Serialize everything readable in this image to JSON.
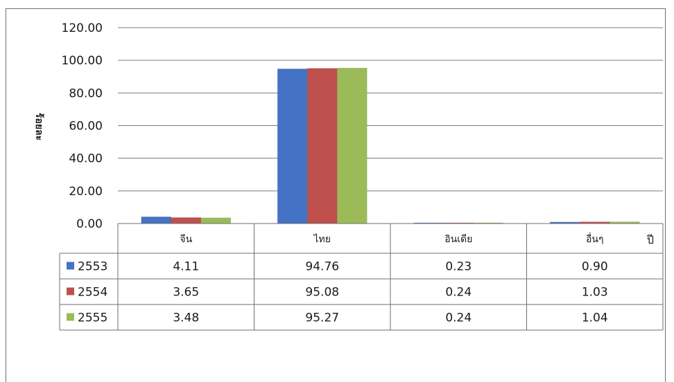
{
  "chart_data": {
    "type": "bar",
    "title": "",
    "ylabel": "ร้อยละ",
    "xlabel": "ปี",
    "ylim": [
      0,
      120
    ],
    "yticks": [
      "0.00",
      "20.00",
      "40.00",
      "60.00",
      "80.00",
      "100.00",
      "120.00"
    ],
    "categories": [
      "จีน",
      "ไทย",
      "อินเดีย",
      "อื่นๆ"
    ],
    "series": [
      {
        "name": "2553",
        "color": "#4472c4",
        "values": [
          4.11,
          94.76,
          0.23,
          0.9
        ],
        "labels": [
          "4.11",
          "94.76",
          "0.23",
          "0.90"
        ]
      },
      {
        "name": "2554",
        "color": "#c0504d",
        "values": [
          3.65,
          95.08,
          0.24,
          1.03
        ],
        "labels": [
          "3.65",
          "95.08",
          "0.24",
          "1.03"
        ]
      },
      {
        "name": "2555",
        "color": "#9bbb59",
        "values": [
          3.48,
          95.27,
          0.24,
          1.04
        ],
        "labels": [
          "3.48",
          "95.27",
          "0.24",
          "1.04"
        ]
      }
    ],
    "grid": true,
    "legend": "data-table"
  }
}
